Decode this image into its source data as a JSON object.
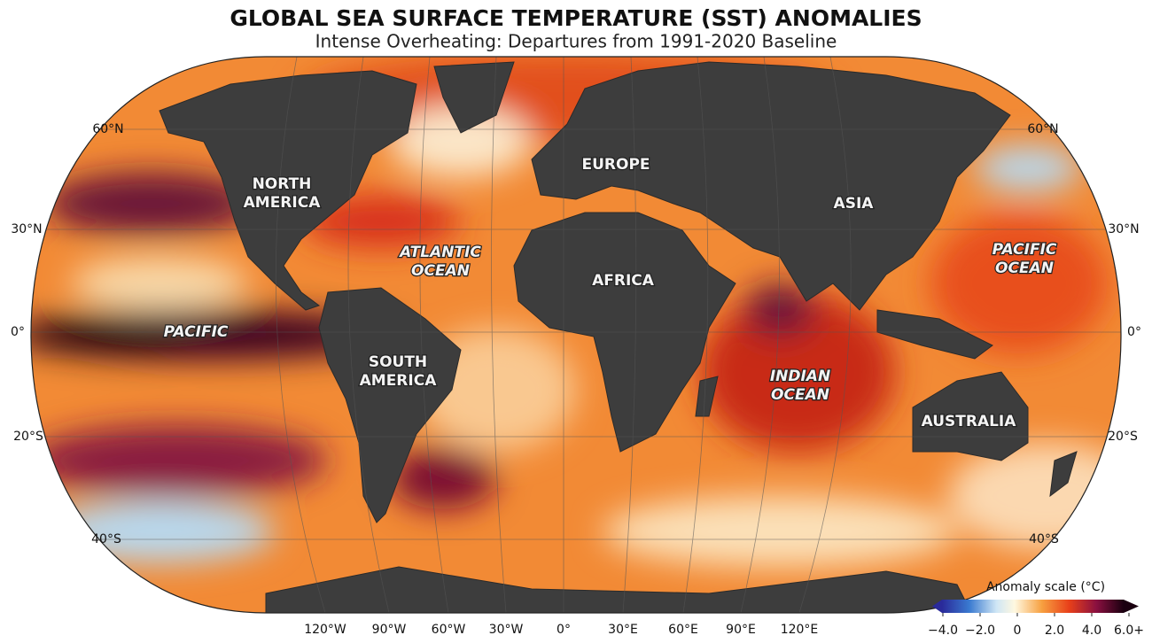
{
  "header": {
    "title": "GLOBAL SEA SURFACE TEMPERATURE (SST) ANOMALIES",
    "subtitle": "Intense Overheating: Departures from 1991-2020 Baseline"
  },
  "latitude_labels": [
    "60°N",
    "30°N",
    "0°",
    "20°S",
    "40°S"
  ],
  "longitude_labels": [
    "120°W",
    "90°W",
    "60°W",
    "30°W",
    "0°",
    "30°E",
    "60°E",
    "90°E",
    "120°E"
  ],
  "regions": [
    {
      "lines": [
        "NORTH",
        "AMERICA"
      ]
    },
    {
      "lines": [
        "ATLANTIC",
        "OCEAN"
      ]
    },
    {
      "lines": [
        "EUROPE"
      ]
    },
    {
      "lines": [
        "ASIA"
      ]
    },
    {
      "lines": [
        "AFRICA"
      ]
    },
    {
      "lines": [
        "PACIFIC",
        "OCEAN"
      ]
    },
    {
      "lines": [
        "PACIFIC"
      ]
    },
    {
      "lines": [
        "SOUTH",
        "AMERICA"
      ]
    },
    {
      "lines": [
        "INDIAN",
        "OCEAN"
      ]
    },
    {
      "lines": [
        "AUSTRALIA"
      ]
    }
  ],
  "legend": {
    "title": "Anomaly scale (°C)",
    "ticks": [
      {
        "value": -4,
        "label": "−4.0"
      },
      {
        "value": -2,
        "label": "−2.0"
      },
      0,
      {
        "value": 2,
        "label": "2.0"
      },
      {
        "value": 4,
        "label": "4.0"
      },
      {
        "value": 6,
        "label": "6.0+"
      }
    ]
  }
}
